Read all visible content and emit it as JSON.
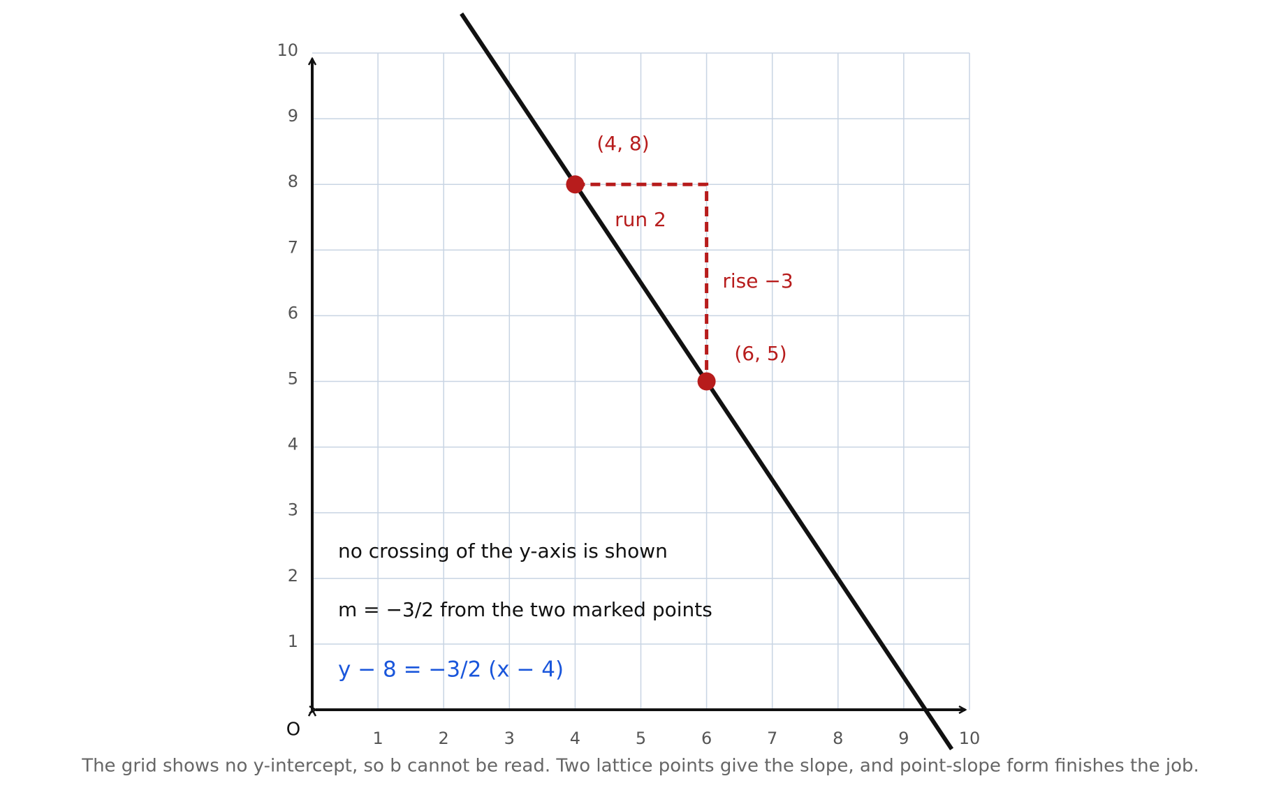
{
  "chart_data": {
    "type": "line",
    "xlim": [
      0,
      10
    ],
    "ylim": [
      0,
      10
    ],
    "xticks": [
      1,
      2,
      3,
      4,
      5,
      6,
      7,
      8,
      9,
      10
    ],
    "yticks": [
      1,
      2,
      3,
      4,
      5,
      6,
      7,
      8,
      9,
      10
    ],
    "grid": true,
    "origin_label": "O",
    "series": [
      {
        "color": "#111111",
        "x": [
          2.27,
          9.73
        ],
        "values": [
          10.6,
          -0.6
        ]
      }
    ],
    "points": {
      "color": "#b71c1c",
      "x": [
        4,
        6
      ],
      "values": [
        8,
        5
      ],
      "labels": [
        "(4, 8)",
        "(6, 5)"
      ]
    },
    "run_label": "run 2",
    "rise_label": "rise −3",
    "notes": [
      "no crossing of the y-axis is shown",
      "m = −3/2 from the two marked points"
    ],
    "equation": "y − 8 = −3/2 (x − 4)",
    "caption": "The grid shows no y-intercept, so b cannot be read. Two lattice points give the slope, and point-slope form finishes the job."
  }
}
